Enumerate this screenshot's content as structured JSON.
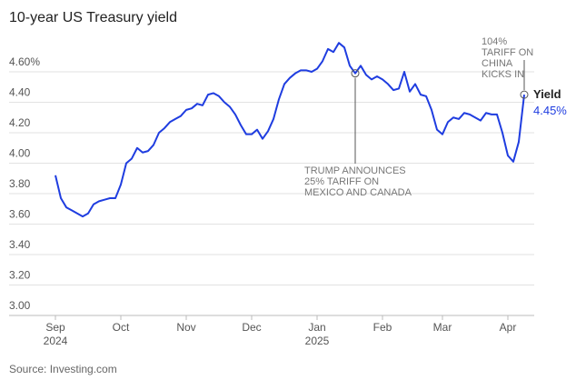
{
  "chart_data": {
    "type": "line",
    "title": "10-year US Treasury yield",
    "source": "Source: Investing.com",
    "categories": [
      "Sep 2024",
      null,
      null,
      null,
      null,
      null,
      null,
      null,
      null,
      null,
      null,
      null,
      "Oct",
      null,
      null,
      null,
      null,
      null,
      null,
      null,
      null,
      null,
      null,
      null,
      "Nov",
      null,
      null,
      null,
      null,
      null,
      null,
      null,
      null,
      null,
      null,
      null,
      "Dec",
      null,
      null,
      null,
      null,
      null,
      null,
      null,
      null,
      null,
      null,
      null,
      "Jan 2025",
      null,
      null,
      null,
      null,
      null,
      null,
      null,
      null,
      null,
      null,
      null,
      "Feb",
      null,
      null,
      null,
      null,
      null,
      null,
      null,
      null,
      null,
      null,
      "Mar",
      null,
      null,
      null,
      null,
      null,
      null,
      null,
      null,
      null,
      null,
      null,
      "Apr",
      null,
      null,
      null
    ],
    "series": [
      {
        "name": "Yield",
        "color": "#1f3de0",
        "values": [
          3.92,
          3.77,
          3.71,
          3.69,
          3.67,
          3.65,
          3.67,
          3.73,
          3.75,
          3.76,
          3.77,
          3.77,
          3.86,
          4.0,
          4.03,
          4.1,
          4.07,
          4.08,
          4.12,
          4.2,
          4.23,
          4.27,
          4.29,
          4.31,
          4.35,
          4.36,
          4.39,
          4.38,
          4.45,
          4.46,
          4.44,
          4.4,
          4.37,
          4.32,
          4.25,
          4.19,
          4.19,
          4.22,
          4.16,
          4.21,
          4.29,
          4.42,
          4.52,
          4.56,
          4.59,
          4.61,
          4.61,
          4.6,
          4.62,
          4.67,
          4.75,
          4.73,
          4.79,
          4.76,
          4.64,
          4.59,
          4.64,
          4.58,
          4.55,
          4.57,
          4.55,
          4.52,
          4.48,
          4.49,
          4.6,
          4.47,
          4.52,
          4.45,
          4.44,
          4.35,
          4.22,
          4.19,
          4.27,
          4.3,
          4.29,
          4.33,
          4.32,
          4.3,
          4.28,
          4.33,
          4.32,
          4.32,
          4.2,
          4.05,
          4.01,
          4.14,
          4.45
        ],
        "value_labels": [
          null,
          null,
          null,
          null,
          null,
          null,
          null,
          null,
          null,
          null,
          null,
          null,
          null,
          null,
          null,
          null,
          null,
          null,
          null,
          null,
          null,
          null,
          null,
          null,
          null,
          null,
          null,
          null,
          null,
          null,
          null,
          null,
          null,
          null,
          null,
          null,
          null,
          null,
          null,
          null,
          null,
          null,
          null,
          null,
          null,
          null,
          null,
          null,
          null,
          null,
          null,
          null,
          null,
          null,
          null,
          null,
          null,
          null,
          null,
          null,
          null,
          null,
          null,
          null,
          null,
          null,
          null,
          null,
          null,
          null,
          null,
          null,
          null,
          null,
          null,
          null,
          null,
          null,
          null,
          null,
          null,
          null,
          null,
          null,
          null,
          null,
          "4.45%"
        ]
      }
    ],
    "ylim": [
      3.0,
      4.8
    ],
    "yticks": [
      {
        "value": 3.0,
        "label": "3.00"
      },
      {
        "value": 3.2,
        "label": "3.20"
      },
      {
        "value": 3.4,
        "label": "3.40"
      },
      {
        "value": 3.6,
        "label": "3.60"
      },
      {
        "value": 3.8,
        "label": "3.80"
      },
      {
        "value": 4.0,
        "label": "4.00"
      },
      {
        "value": 4.2,
        "label": "4.20"
      },
      {
        "value": 4.4,
        "label": "4.40"
      },
      {
        "value": 4.6,
        "label": "4.60%"
      }
    ],
    "grid": true,
    "annotations": [
      {
        "text": "TRUMP ANNOUNCES 25% TARIFF ON MEXICO AND CANADA",
        "index": 55
      },
      {
        "text": "104% TARIFF ON CHINA KICKS IN",
        "index": 86
      }
    ]
  }
}
